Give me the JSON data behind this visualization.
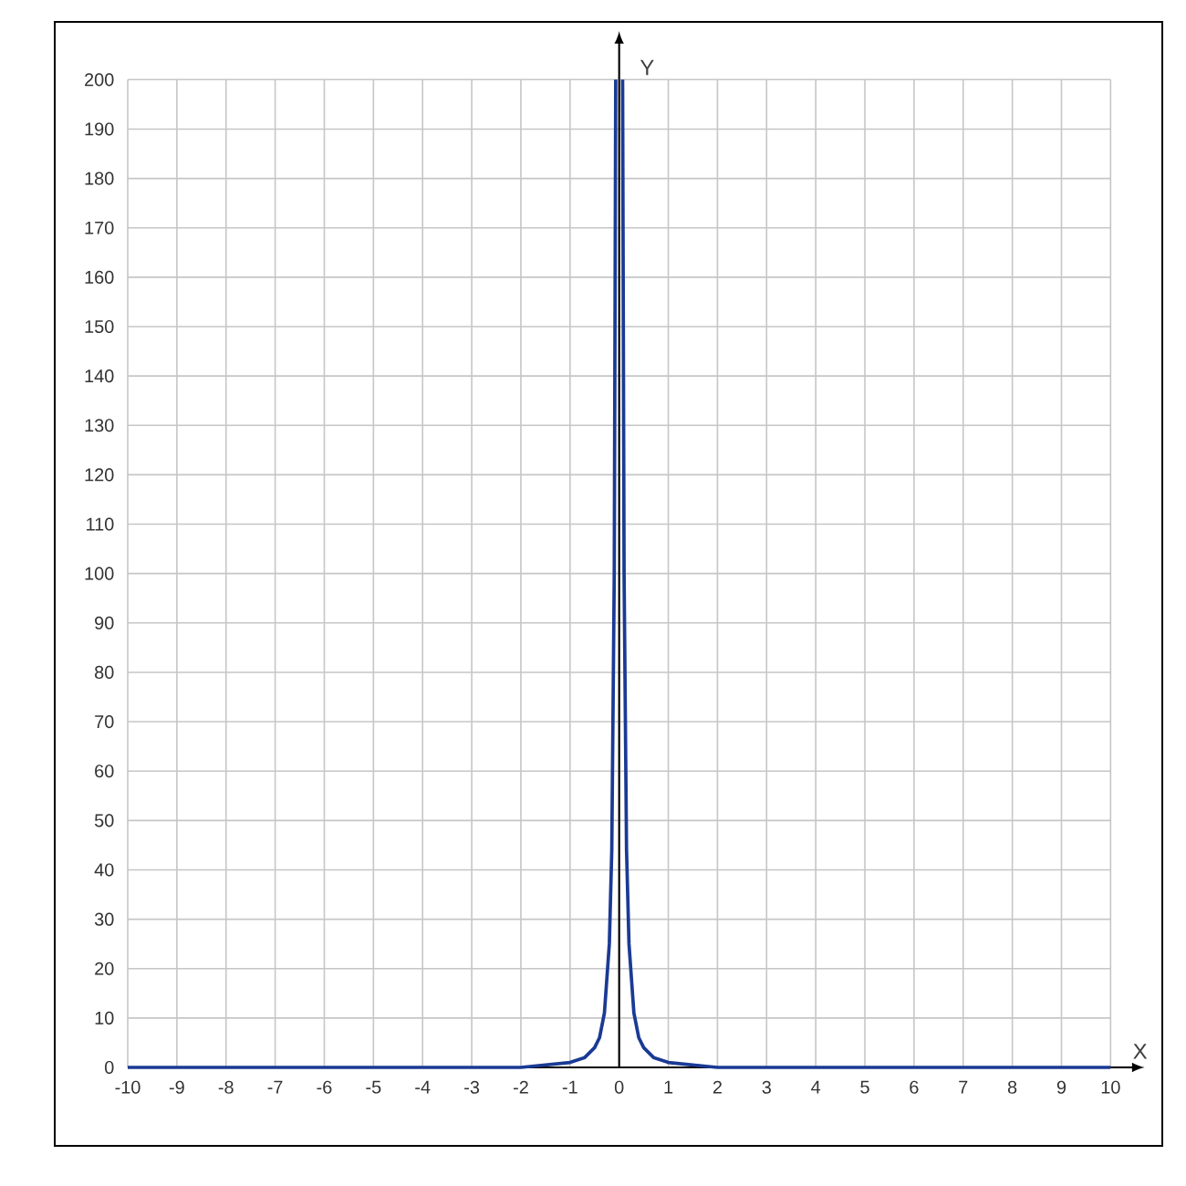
{
  "chart_data": {
    "type": "line",
    "xlabel": "X",
    "ylabel": "Y",
    "x": [
      -10,
      -2,
      -1.5,
      -1,
      -0.7,
      -0.5,
      -0.4,
      -0.3,
      -0.2,
      -0.15,
      -0.1,
      -0.07,
      0,
      0.07,
      0.1,
      0.15,
      0.2,
      0.3,
      0.4,
      0.5,
      0.7,
      1,
      1.5,
      2,
      10
    ],
    "values": [
      0,
      0,
      0.5,
      1,
      2,
      4,
      6,
      11,
      25,
      44,
      100,
      200,
      null,
      200,
      100,
      44,
      25,
      11,
      6,
      4,
      2,
      1,
      0.5,
      0,
      0
    ],
    "color": "#1a3a94",
    "xlim": [
      -10,
      10
    ],
    "ylim": [
      0,
      200
    ],
    "xticks": [
      -10,
      -9,
      -8,
      -7,
      -6,
      -5,
      -4,
      -3,
      -2,
      -1,
      0,
      1,
      2,
      3,
      4,
      5,
      6,
      7,
      8,
      9,
      10
    ],
    "yticks": [
      0,
      10,
      20,
      30,
      40,
      50,
      60,
      70,
      80,
      90,
      100,
      110,
      120,
      130,
      140,
      150,
      160,
      170,
      180,
      190,
      200
    ],
    "grid": true
  }
}
